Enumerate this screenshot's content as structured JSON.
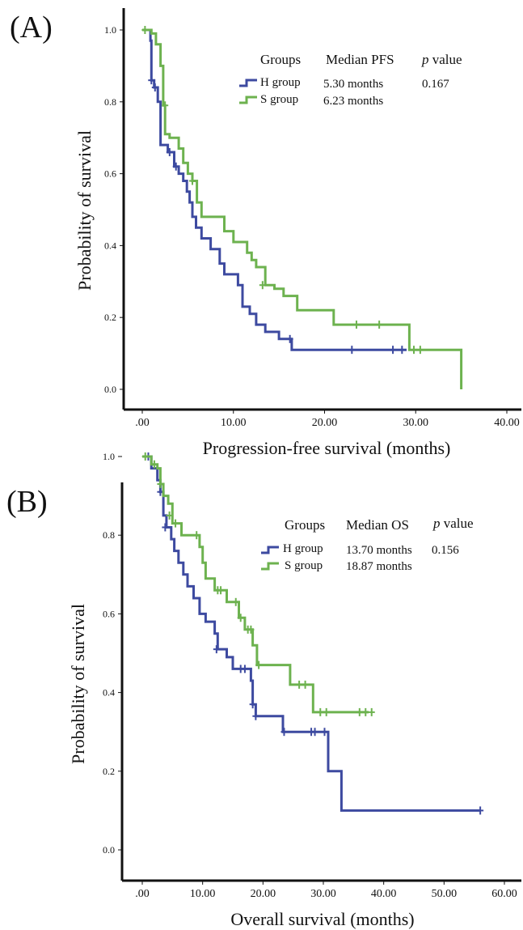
{
  "chart_data": [
    {
      "type": "line",
      "panel_label": "(A)",
      "xlabel": "Progression-free survival (months)",
      "ylabel": "Probability of survival",
      "xlim": [
        0,
        40
      ],
      "ylim": [
        0,
        1
      ],
      "x_ticks": [
        0,
        10,
        20,
        30,
        40
      ],
      "x_tick_labels": [
        ".00",
        "10.00",
        "20.00",
        "30.00",
        "40.00"
      ],
      "y_ticks": [
        0,
        0.2,
        0.4,
        0.6,
        0.8,
        1.0
      ],
      "y_tick_labels": [
        "0.0",
        "0.2",
        "0.4",
        "0.6",
        "0.8",
        "1.0"
      ],
      "legend": {
        "headers": [
          "Groups",
          "Median PFS",
          "value"
        ],
        "p_symbol": "p",
        "rows": [
          {
            "group": "H group",
            "median": "5.30 months",
            "p": "0.167",
            "color": "#3d4aa0"
          },
          {
            "group": "S group",
            "median": "6.23 months",
            "p": "",
            "color": "#6db24f"
          }
        ]
      },
      "series": [
        {
          "name": "H group",
          "color": "#3d4aa0",
          "steps": [
            [
              0,
              1.0
            ],
            [
              0.9,
              0.97
            ],
            [
              1.0,
              0.86
            ],
            [
              1.3,
              0.84
            ],
            [
              1.7,
              0.8
            ],
            [
              2.0,
              0.68
            ],
            [
              2.5,
              0.68
            ],
            [
              2.8,
              0.66
            ],
            [
              3.5,
              0.62
            ],
            [
              4.0,
              0.6
            ],
            [
              4.5,
              0.58
            ],
            [
              4.9,
              0.55
            ],
            [
              5.2,
              0.52
            ],
            [
              5.5,
              0.48
            ],
            [
              5.9,
              0.45
            ],
            [
              6.5,
              0.42
            ],
            [
              7.5,
              0.39
            ],
            [
              8.5,
              0.35
            ],
            [
              9.0,
              0.32
            ],
            [
              10.5,
              0.29
            ],
            [
              11.0,
              0.23
            ],
            [
              11.8,
              0.21
            ],
            [
              12.5,
              0.18
            ],
            [
              13.5,
              0.16
            ],
            [
              15.0,
              0.14
            ],
            [
              16.4,
              0.11
            ],
            [
              29.0,
              0.11
            ]
          ],
          "censor": [
            [
              1.0,
              0.86
            ],
            [
              1.4,
              0.84
            ],
            [
              3.0,
              0.66
            ],
            [
              3.7,
              0.62
            ],
            [
              16.2,
              0.14
            ],
            [
              23.0,
              0.11
            ],
            [
              27.5,
              0.11
            ],
            [
              28.5,
              0.11
            ]
          ]
        },
        {
          "name": "S group",
          "color": "#6db24f",
          "steps": [
            [
              0,
              1.0
            ],
            [
              1.0,
              0.99
            ],
            [
              1.5,
              0.96
            ],
            [
              2.0,
              0.9
            ],
            [
              2.3,
              0.79
            ],
            [
              2.5,
              0.71
            ],
            [
              3.0,
              0.7
            ],
            [
              4.0,
              0.67
            ],
            [
              4.5,
              0.63
            ],
            [
              5.0,
              0.6
            ],
            [
              5.5,
              0.58
            ],
            [
              6.0,
              0.52
            ],
            [
              6.5,
              0.48
            ],
            [
              9.0,
              0.44
            ],
            [
              10.0,
              0.41
            ],
            [
              11.5,
              0.38
            ],
            [
              12.0,
              0.36
            ],
            [
              12.5,
              0.34
            ],
            [
              13.5,
              0.29
            ],
            [
              14.5,
              0.28
            ],
            [
              15.5,
              0.26
            ],
            [
              17.0,
              0.22
            ],
            [
              21.0,
              0.18
            ],
            [
              29.3,
              0.11
            ],
            [
              35.0,
              0.11
            ],
            [
              35.0,
              0.0
            ]
          ],
          "censor": [
            [
              0.3,
              1.0
            ],
            [
              2.5,
              0.79
            ],
            [
              5.5,
              0.58
            ],
            [
              13.2,
              0.29
            ],
            [
              23.5,
              0.18
            ],
            [
              26.0,
              0.18
            ],
            [
              29.8,
              0.11
            ],
            [
              30.5,
              0.11
            ]
          ]
        }
      ]
    },
    {
      "type": "line",
      "panel_label": "(B)",
      "xlabel": "Overall survival (months)",
      "ylabel": "Probability of survival",
      "xlim": [
        0,
        60
      ],
      "ylim": [
        0,
        1
      ],
      "x_ticks": [
        0,
        10,
        20,
        30,
        40,
        50,
        60
      ],
      "x_tick_labels": [
        ".00",
        "10.00",
        "20.00",
        "30.00",
        "40.00",
        "50.00",
        "60.00"
      ],
      "y_ticks": [
        0,
        0.2,
        0.4,
        0.6,
        0.8,
        1.0
      ],
      "y_tick_labels": [
        "0.0",
        "0.2",
        "0.4",
        "0.6",
        "0.8",
        "1.0"
      ],
      "legend": {
        "headers": [
          "Groups",
          "Median OS",
          "value"
        ],
        "p_symbol": "p",
        "rows": [
          {
            "group": "H group",
            "median": "13.70 months",
            "p": "0.156",
            "color": "#3d4aa0"
          },
          {
            "group": "S group",
            "median": "18.87 months",
            "p": "",
            "color": "#6db24f"
          }
        ]
      },
      "series": [
        {
          "name": "H group",
          "color": "#3d4aa0",
          "steps": [
            [
              0,
              1.0
            ],
            [
              1.5,
              0.97
            ],
            [
              2.5,
              0.94
            ],
            [
              3.0,
              0.91
            ],
            [
              3.5,
              0.85
            ],
            [
              4.0,
              0.82
            ],
            [
              4.8,
              0.79
            ],
            [
              5.3,
              0.76
            ],
            [
              6.0,
              0.73
            ],
            [
              6.8,
              0.7
            ],
            [
              7.5,
              0.67
            ],
            [
              8.5,
              0.64
            ],
            [
              9.5,
              0.6
            ],
            [
              10.5,
              0.58
            ],
            [
              12.0,
              0.55
            ],
            [
              12.5,
              0.51
            ],
            [
              14.0,
              0.49
            ],
            [
              15.0,
              0.46
            ],
            [
              18.0,
              0.43
            ],
            [
              18.3,
              0.37
            ],
            [
              18.8,
              0.34
            ],
            [
              23.3,
              0.3
            ],
            [
              30.8,
              0.2
            ],
            [
              33.0,
              0.1
            ],
            [
              56.0,
              0.1
            ]
          ],
          "censor": [
            [
              1.0,
              1.0
            ],
            [
              3.0,
              0.91
            ],
            [
              3.8,
              0.82
            ],
            [
              12.3,
              0.51
            ],
            [
              16.3,
              0.46
            ],
            [
              17.0,
              0.46
            ],
            [
              18.3,
              0.37
            ],
            [
              18.8,
              0.34
            ],
            [
              23.5,
              0.3
            ],
            [
              28.0,
              0.3
            ],
            [
              28.6,
              0.3
            ],
            [
              30.2,
              0.3
            ],
            [
              56.0,
              0.1
            ]
          ]
        },
        {
          "name": "S group",
          "color": "#6db24f",
          "steps": [
            [
              0,
              1.0
            ],
            [
              1.5,
              0.98
            ],
            [
              2.5,
              0.97
            ],
            [
              3.0,
              0.93
            ],
            [
              3.5,
              0.9
            ],
            [
              4.3,
              0.88
            ],
            [
              5.0,
              0.83
            ],
            [
              6.5,
              0.8
            ],
            [
              9.5,
              0.77
            ],
            [
              10.0,
              0.73
            ],
            [
              10.5,
              0.69
            ],
            [
              12.0,
              0.66
            ],
            [
              14.0,
              0.63
            ],
            [
              16.0,
              0.59
            ],
            [
              17.0,
              0.56
            ],
            [
              18.3,
              0.52
            ],
            [
              19.0,
              0.47
            ],
            [
              24.5,
              0.42
            ],
            [
              28.3,
              0.35
            ],
            [
              37.5,
              0.35
            ]
          ],
          "censor": [
            [
              0.5,
              1.0
            ],
            [
              2.0,
              0.98
            ],
            [
              3.0,
              0.93
            ],
            [
              4.5,
              0.85
            ],
            [
              5.5,
              0.83
            ],
            [
              9.0,
              0.8
            ],
            [
              12.5,
              0.66
            ],
            [
              13.0,
              0.66
            ],
            [
              15.5,
              0.63
            ],
            [
              16.3,
              0.59
            ],
            [
              17.5,
              0.56
            ],
            [
              18.0,
              0.56
            ],
            [
              19.3,
              0.47
            ],
            [
              26.0,
              0.42
            ],
            [
              27.0,
              0.42
            ],
            [
              29.5,
              0.35
            ],
            [
              30.5,
              0.35
            ],
            [
              36.0,
              0.35
            ],
            [
              37.0,
              0.35
            ],
            [
              38.0,
              0.35
            ]
          ]
        }
      ]
    }
  ]
}
